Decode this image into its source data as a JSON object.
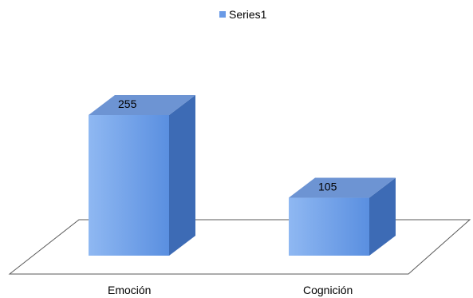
{
  "chart_data": {
    "type": "bar",
    "categories": [
      "Emoción",
      "Cognición"
    ],
    "series": [
      {
        "name": "Series1",
        "values": [
          255,
          105
        ]
      }
    ],
    "data_labels": [
      "255",
      "105"
    ],
    "legend": {
      "position": "top",
      "entries": [
        "Series1"
      ]
    },
    "style": "3d-column",
    "colors": {
      "bar_front_light": "#8fb8f2",
      "bar_front_dark": "#5a8fe0",
      "bar_side": "#3d6bb5",
      "bar_top": "#6d94d3",
      "floor_line": "#595959",
      "legend_marker": "#6a9ae6"
    },
    "grid": false,
    "ylim": [
      0,
      255
    ]
  }
}
